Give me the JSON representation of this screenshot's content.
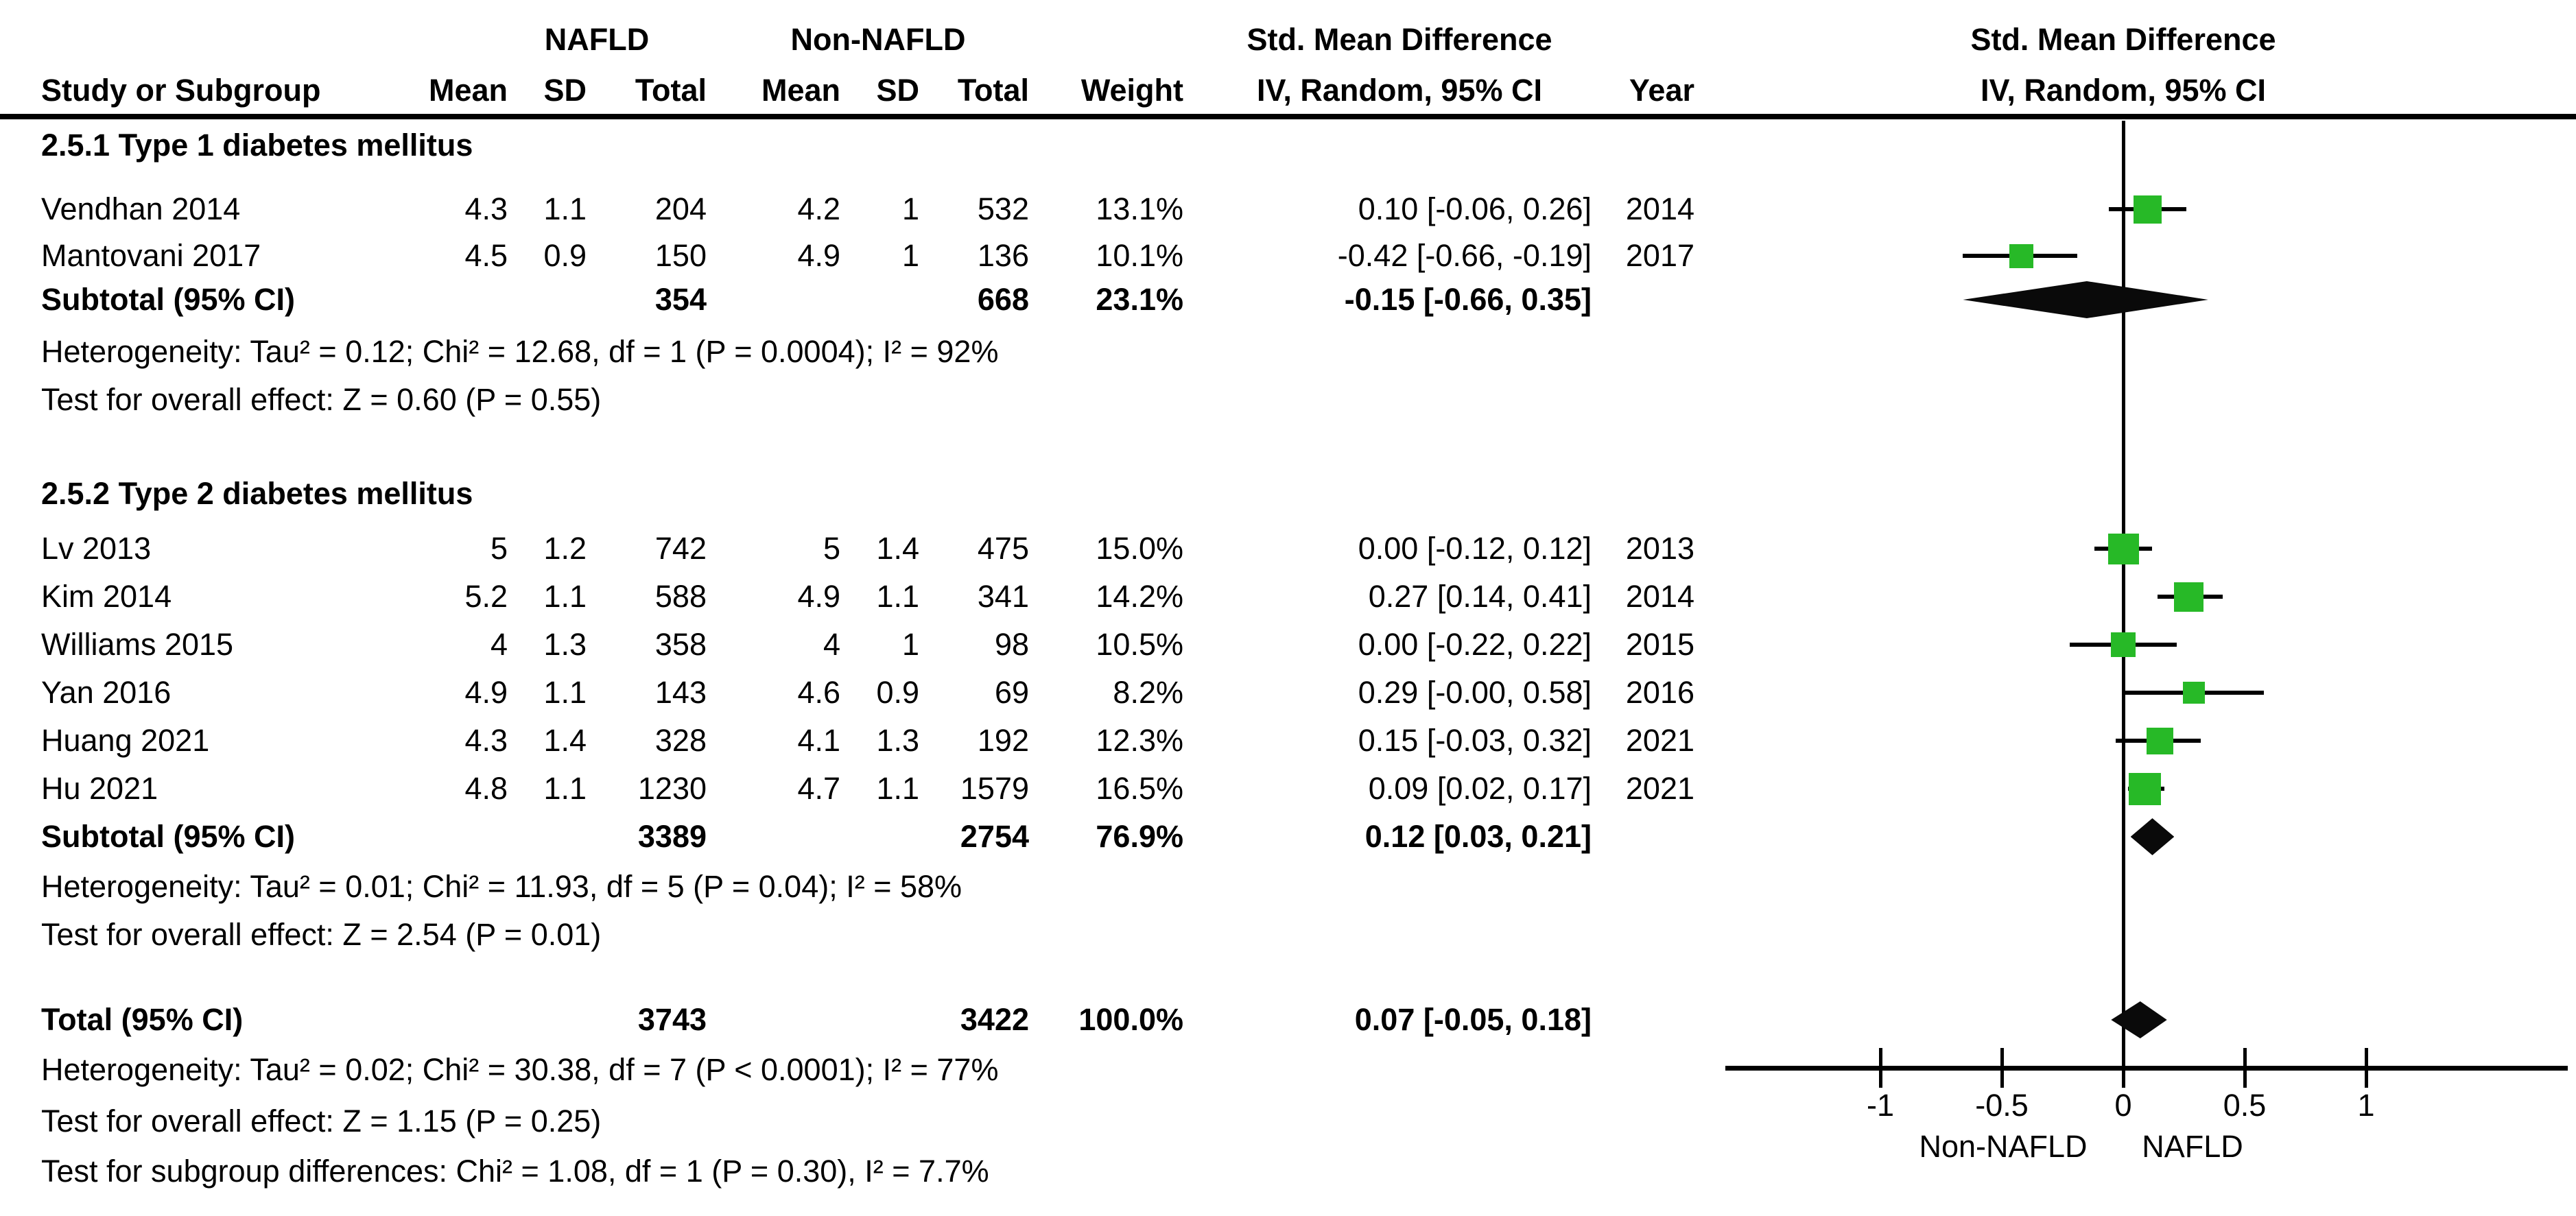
{
  "header": {
    "group1_label": "NAFLD",
    "group2_label": "Non-NAFLD",
    "smd_left": "Std. Mean Difference",
    "smd_right": "Std. Mean Difference",
    "col_study": "Study or Subgroup",
    "col_mean1": "Mean",
    "col_sd1": "SD",
    "col_total1": "Total",
    "col_mean2": "Mean",
    "col_sd2": "SD",
    "col_total2": "Total",
    "col_weight": "Weight",
    "col_ci_left": "IV, Random, 95% CI",
    "col_year": "Year",
    "col_ci_right": "IV, Random, 95% CI"
  },
  "groups": [
    {
      "title": "2.5.1 Type 1 diabetes mellitus",
      "studies": [
        {
          "name": "Vendhan 2014",
          "mean1": "4.3",
          "sd1": "1.1",
          "total1": "204",
          "mean2": "4.2",
          "sd2": "1",
          "total2": "532",
          "weight": "13.1%",
          "ci": "0.10 [-0.06, 0.26]",
          "year": "2014",
          "smd": 0.1,
          "lo": -0.06,
          "hi": 0.26,
          "weight_pct": 13.1
        },
        {
          "name": "Mantovani 2017",
          "mean1": "4.5",
          "sd1": "0.9",
          "total1": "150",
          "mean2": "4.9",
          "sd2": "1",
          "total2": "136",
          "weight": "10.1%",
          "ci": "-0.42 [-0.66, -0.19]",
          "year": "2017",
          "smd": -0.42,
          "lo": -0.66,
          "hi": -0.19,
          "weight_pct": 10.1
        }
      ],
      "subtotal": {
        "label": "Subtotal (95% CI)",
        "total1": "354",
        "total2": "668",
        "weight": "23.1%",
        "ci": "-0.15 [-0.66, 0.35]",
        "smd": -0.15,
        "lo": -0.66,
        "hi": 0.35
      },
      "heterogeneity": "Heterogeneity: Tau² = 0.12; Chi² = 12.68, df = 1 (P = 0.0004); I² = 92%",
      "overall_effect": "Test for overall effect: Z = 0.60 (P = 0.55)"
    },
    {
      "title": "2.5.2 Type 2 diabetes mellitus",
      "studies": [
        {
          "name": "Lv 2013",
          "mean1": "5",
          "sd1": "1.2",
          "total1": "742",
          "mean2": "5",
          "sd2": "1.4",
          "total2": "475",
          "weight": "15.0%",
          "ci": "0.00 [-0.12, 0.12]",
          "year": "2013",
          "smd": 0.0,
          "lo": -0.12,
          "hi": 0.12,
          "weight_pct": 15.0
        },
        {
          "name": "Kim 2014",
          "mean1": "5.2",
          "sd1": "1.1",
          "total1": "588",
          "mean2": "4.9",
          "sd2": "1.1",
          "total2": "341",
          "weight": "14.2%",
          "ci": "0.27 [0.14, 0.41]",
          "year": "2014",
          "smd": 0.27,
          "lo": 0.14,
          "hi": 0.41,
          "weight_pct": 14.2
        },
        {
          "name": "Williams 2015",
          "mean1": "4",
          "sd1": "1.3",
          "total1": "358",
          "mean2": "4",
          "sd2": "1",
          "total2": "98",
          "weight": "10.5%",
          "ci": "0.00 [-0.22, 0.22]",
          "year": "2015",
          "smd": 0.0,
          "lo": -0.22,
          "hi": 0.22,
          "weight_pct": 10.5
        },
        {
          "name": "Yan 2016",
          "mean1": "4.9",
          "sd1": "1.1",
          "total1": "143",
          "mean2": "4.6",
          "sd2": "0.9",
          "total2": "69",
          "weight": "8.2%",
          "ci": "0.29 [-0.00, 0.58]",
          "year": "2016",
          "smd": 0.29,
          "lo": 0.0,
          "hi": 0.58,
          "weight_pct": 8.2
        },
        {
          "name": "Huang 2021",
          "mean1": "4.3",
          "sd1": "1.4",
          "total1": "328",
          "mean2": "4.1",
          "sd2": "1.3",
          "total2": "192",
          "weight": "12.3%",
          "ci": "0.15 [-0.03, 0.32]",
          "year": "2021",
          "smd": 0.15,
          "lo": -0.03,
          "hi": 0.32,
          "weight_pct": 12.3
        },
        {
          "name": "Hu 2021",
          "mean1": "4.8",
          "sd1": "1.1",
          "total1": "1230",
          "mean2": "4.7",
          "sd2": "1.1",
          "total2": "1579",
          "weight": "16.5%",
          "ci": "0.09 [0.02, 0.17]",
          "year": "2021",
          "smd": 0.09,
          "lo": 0.02,
          "hi": 0.17,
          "weight_pct": 16.5
        }
      ],
      "subtotal": {
        "label": "Subtotal (95% CI)",
        "total1": "3389",
        "total2": "2754",
        "weight": "76.9%",
        "ci": "0.12 [0.03, 0.21]",
        "smd": 0.12,
        "lo": 0.03,
        "hi": 0.21
      },
      "heterogeneity": "Heterogeneity: Tau² = 0.01; Chi² = 11.93, df = 5 (P = 0.04); I² = 58%",
      "overall_effect": "Test for overall effect: Z = 2.54 (P = 0.01)"
    }
  ],
  "total": {
    "label": "Total (95% CI)",
    "total1": "3743",
    "total2": "3422",
    "weight": "100.0%",
    "ci": "0.07 [-0.05, 0.18]",
    "smd": 0.07,
    "lo": -0.05,
    "hi": 0.18
  },
  "footer": {
    "heterogeneity": "Heterogeneity: Tau² = 0.02; Chi² = 30.38, df = 7 (P < 0.0001); I² = 77%",
    "overall_effect": "Test for overall effect: Z = 1.15 (P = 0.25)",
    "subgroup": "Test for subgroup differences: Chi² = 1.08, df = 1 (P = 0.30), I² = 7.7%"
  },
  "axis": {
    "ticks": [
      "-1",
      "-0.5",
      "0",
      "0.5",
      "1"
    ],
    "tick_values": [
      -1,
      -0.5,
      0,
      0.5,
      1
    ],
    "xmin": -1.64,
    "xmax": 1.83,
    "label_left": "Non-NAFLD",
    "label_right": "NAFLD"
  },
  "colors": {
    "marker_green": "#27b927",
    "diamond_black": "#0a0a0a",
    "line_black": "#000000"
  },
  "chart_data": {
    "type": "scatter",
    "title": "Std. Mean Difference, IV, Random, 95% CI (forest plot)",
    "xlabel_left": "Non-NAFLD",
    "xlabel_right": "NAFLD",
    "xlim": [
      -1.64,
      1.83
    ],
    "xticks": [
      -1,
      -0.5,
      0,
      0.5,
      1
    ],
    "points": [
      {
        "label": "Vendhan 2014",
        "smd": 0.1,
        "ci": [
          -0.06,
          0.26
        ],
        "weight_pct": 13.1,
        "year": 2014,
        "subgroup": "Type 1 diabetes mellitus"
      },
      {
        "label": "Mantovani 2017",
        "smd": -0.42,
        "ci": [
          -0.66,
          -0.19
        ],
        "weight_pct": 10.1,
        "year": 2017,
        "subgroup": "Type 1 diabetes mellitus"
      },
      {
        "label": "Lv 2013",
        "smd": 0.0,
        "ci": [
          -0.12,
          0.12
        ],
        "weight_pct": 15.0,
        "year": 2013,
        "subgroup": "Type 2 diabetes mellitus"
      },
      {
        "label": "Kim 2014",
        "smd": 0.27,
        "ci": [
          0.14,
          0.41
        ],
        "weight_pct": 14.2,
        "year": 2014,
        "subgroup": "Type 2 diabetes mellitus"
      },
      {
        "label": "Williams 2015",
        "smd": 0.0,
        "ci": [
          -0.22,
          0.22
        ],
        "weight_pct": 10.5,
        "year": 2015,
        "subgroup": "Type 2 diabetes mellitus"
      },
      {
        "label": "Yan 2016",
        "smd": 0.29,
        "ci": [
          -0.0,
          0.58
        ],
        "weight_pct": 8.2,
        "year": 2016,
        "subgroup": "Type 2 diabetes mellitus"
      },
      {
        "label": "Huang 2021",
        "smd": 0.15,
        "ci": [
          -0.03,
          0.32
        ],
        "weight_pct": 12.3,
        "year": 2021,
        "subgroup": "Type 2 diabetes mellitus"
      },
      {
        "label": "Hu 2021",
        "smd": 0.09,
        "ci": [
          0.02,
          0.17
        ],
        "weight_pct": 16.5,
        "year": 2021,
        "subgroup": "Type 2 diabetes mellitus"
      }
    ],
    "diamonds": [
      {
        "label": "Subtotal Type 1 diabetes mellitus",
        "smd": -0.15,
        "ci": [
          -0.66,
          0.35
        ]
      },
      {
        "label": "Subtotal Type 2 diabetes mellitus",
        "smd": 0.12,
        "ci": [
          0.03,
          0.21
        ]
      },
      {
        "label": "Total",
        "smd": 0.07,
        "ci": [
          -0.05,
          0.18
        ]
      }
    ]
  }
}
